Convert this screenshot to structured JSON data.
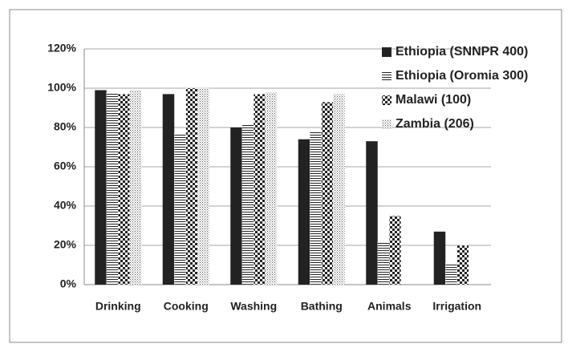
{
  "chart_data": {
    "type": "bar",
    "categories": [
      "Drinking",
      "Cooking",
      "Washing",
      "Bathing",
      "Animals",
      "Irrigation"
    ],
    "series": [
      {
        "name": "Ethiopia (SNNPR 400)",
        "color": "#222222",
        "pattern": "solid",
        "values": [
          99,
          97,
          80,
          74,
          73,
          27
        ]
      },
      {
        "name": "Ethiopia (Oromia 300)",
        "color": "#222222",
        "pattern": "horizontal-lines",
        "values": [
          98,
          77,
          82,
          78,
          22,
          11
        ]
      },
      {
        "name": "Malawi (100)",
        "color": "#222222",
        "pattern": "checker",
        "values": [
          97,
          100,
          97,
          93,
          35,
          20
        ]
      },
      {
        "name": "Zambia (206)",
        "color": "#222222",
        "pattern": "dots",
        "values": [
          99,
          100,
          98,
          97,
          0,
          0
        ]
      }
    ],
    "ylim": [
      0,
      120
    ],
    "yticks": [
      {
        "value": 0,
        "label": "0%"
      },
      {
        "value": 20,
        "label": "20%"
      },
      {
        "value": 40,
        "label": "40%"
      },
      {
        "value": 60,
        "label": "60%"
      },
      {
        "value": 80,
        "label": "80%"
      },
      {
        "value": 100,
        "label": "100%"
      },
      {
        "value": 120,
        "label": "120%"
      }
    ],
    "grid": true,
    "legend": "top-right"
  }
}
